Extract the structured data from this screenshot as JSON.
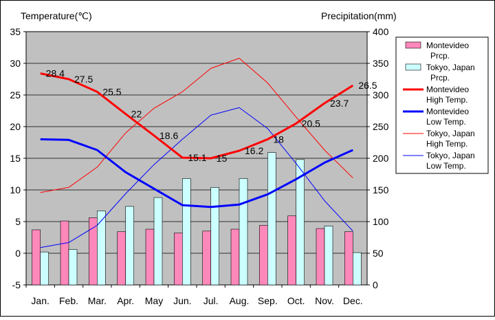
{
  "chart_data": {
    "type": "bar+line",
    "categories": [
      "Jan.",
      "Feb.",
      "Mar.",
      "Apr.",
      "May",
      "Jun.",
      "Jul.",
      "Aug.",
      "Sep.",
      "Oct.",
      "Nov.",
      "Dec."
    ],
    "left_axis": {
      "label": "Temperature(℃)",
      "min": -5,
      "max": 35,
      "ticks": [
        -5,
        0,
        5,
        10,
        15,
        20,
        25,
        30,
        35
      ]
    },
    "right_axis": {
      "label": "Precipitation(mm)",
      "min": 0,
      "max": 400,
      "ticks": [
        0,
        50,
        100,
        150,
        200,
        250,
        300,
        350,
        400
      ]
    },
    "bar_series": [
      {
        "legend": [
          "Montevideo",
          "Prcp."
        ],
        "color": "#ff88bb",
        "axis": "right",
        "values": [
          87,
          101,
          106,
          84,
          88,
          82,
          85,
          88,
          94,
          109,
          89,
          84
        ]
      },
      {
        "legend": [
          "Tokyo, Japan",
          "Prcp."
        ],
        "color": "#ccffff",
        "axis": "right",
        "values": [
          52,
          56,
          117,
          124,
          138,
          168,
          154,
          168,
          209,
          198,
          93,
          51
        ]
      }
    ],
    "line_series": [
      {
        "legend": [
          "Montevideo",
          "High Temp."
        ],
        "color": "#ff0000",
        "width": 3,
        "axis": "left",
        "values": [
          28.4,
          27.5,
          25.5,
          22,
          18.6,
          15.1,
          15,
          16.2,
          18,
          20.5,
          23.7,
          26.5
        ],
        "labels": [
          "28.4",
          "27.5",
          "25.5",
          "22",
          "18.6",
          "15.1",
          "15",
          "16.2",
          "18",
          "20.5",
          "23.7",
          "26.5"
        ]
      },
      {
        "legend": [
          "Montevideo",
          "Low Temp."
        ],
        "color": "#0000ff",
        "width": 3,
        "axis": "left",
        "values": [
          18.0,
          17.9,
          16.3,
          12.8,
          10.2,
          7.6,
          7.3,
          7.7,
          9.3,
          11.7,
          14.3,
          16.3
        ]
      },
      {
        "legend": [
          "Tokyo, Japan",
          "High Temp."
        ],
        "color": "#ff0000",
        "width": 1,
        "axis": "left",
        "values": [
          9.6,
          10.4,
          13.6,
          19.0,
          22.9,
          25.5,
          29.2,
          30.8,
          26.9,
          21.5,
          16.3,
          11.9
        ]
      },
      {
        "legend": [
          "Tokyo, Japan",
          "Low Temp."
        ],
        "color": "#0000ff",
        "width": 1,
        "axis": "left",
        "values": [
          0.9,
          1.7,
          4.4,
          9.4,
          14.0,
          18.0,
          21.8,
          23.0,
          19.7,
          14.2,
          8.3,
          3.5
        ]
      }
    ],
    "grid": true,
    "legend_position": "right"
  }
}
